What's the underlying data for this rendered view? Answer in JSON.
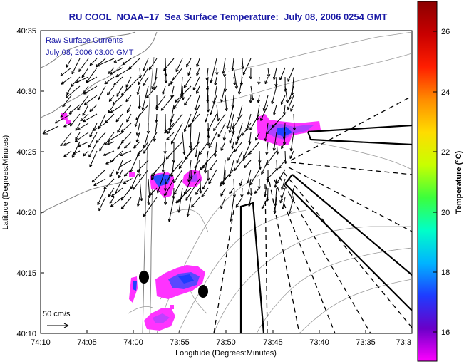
{
  "title": "RU COOL  NOAA–17  Sea Surface Temperature:  July 08, 2006 0254 GMT",
  "overlay": {
    "line1": "Raw Surface Currents",
    "line2": "July 08, 2006 03:00 GMT"
  },
  "axes": {
    "xlabel": "Longitude (Degrees:Minutes)",
    "ylabel": "Latitude (Degrees:Minutes)",
    "xticks": [
      "74:10",
      "74:05",
      "74:00",
      "73:55",
      "73:50",
      "73:45",
      "73:40",
      "73:35",
      "73:3"
    ],
    "yticks": [
      "40:35",
      "40:30",
      "40:25",
      "40:20",
      "40:15",
      "40:10"
    ]
  },
  "scale": {
    "label": "50 cm/s"
  },
  "colorbar": {
    "label": "Temperature (°C)",
    "ticks": [
      "26",
      "24",
      "22",
      "20",
      "18",
      "16"
    ],
    "range": [
      15,
      27
    ],
    "colors": [
      "#ff00ff",
      "#6a00c8",
      "#1e3cff",
      "#00b4ff",
      "#00ffc8",
      "#3cff3c",
      "#c8ff00",
      "#ffdc00",
      "#ff8c00",
      "#ff1e00",
      "#c80000",
      "#8c0000"
    ]
  },
  "colors": {
    "title": "#1a1aa6",
    "coast": "#808080",
    "contour": "#9a9a9a",
    "arrow": "#000000"
  }
}
